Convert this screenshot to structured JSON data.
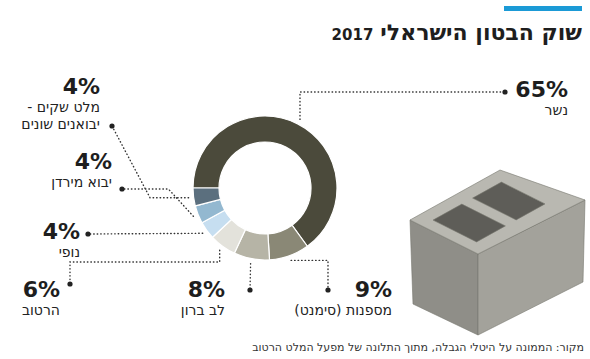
{
  "chart_data": {
    "type": "donut",
    "title": "שוק הבטון הישראלי",
    "subtitle": "2017",
    "source": "מקור: הממונה על היטלי הגבלה, מתוך התלונה של מפעל המלט הרטוב",
    "categories": [
      "נשר",
      "מספנות (סימנט)",
      "לב ברון",
      "הרטוב",
      "נופי",
      "יבוא מירדן",
      "מלט שקים - יבואנים שונים"
    ],
    "values": [
      65,
      9,
      8,
      6,
      4,
      4,
      4
    ],
    "value_labels": [
      "65%",
      "9%",
      "8%",
      "6%",
      "4%",
      "4%",
      "4%"
    ],
    "colors": [
      "#4b4a3b",
      "#8a8876",
      "#b6b4a6",
      "#e3e2db",
      "#c6def0",
      "#93b8d0",
      "#5b6f7e"
    ],
    "data_labels": true
  }
}
